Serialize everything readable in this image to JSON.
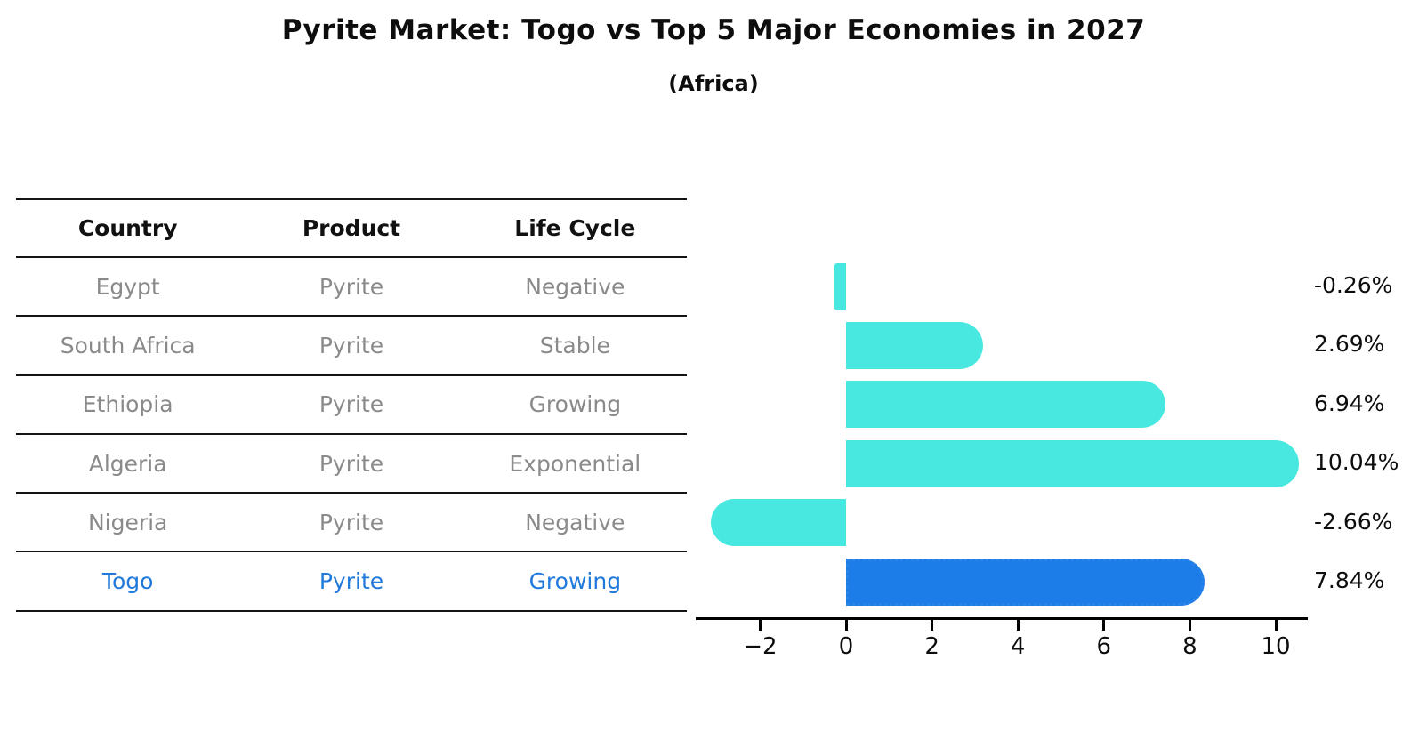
{
  "title": "Pyrite Market: Togo vs Top 5 Major Economies in 2027",
  "subtitle": "(Africa)",
  "table": {
    "headers": [
      "Country",
      "Product",
      "Life Cycle"
    ],
    "rows": [
      {
        "country": "Egypt",
        "product": "Pyrite",
        "life_cycle": "Negative",
        "highlight": false
      },
      {
        "country": "South Africa",
        "product": "Pyrite",
        "life_cycle": "Stable",
        "highlight": false
      },
      {
        "country": "Ethiopia",
        "product": "Pyrite",
        "life_cycle": "Growing",
        "highlight": false
      },
      {
        "country": "Algeria",
        "product": "Pyrite",
        "life_cycle": "Exponential",
        "highlight": false
      },
      {
        "country": "Nigeria",
        "product": "Pyrite",
        "life_cycle": "Negative",
        "highlight": false
      },
      {
        "country": "Togo",
        "product": "Pyrite",
        "life_cycle": "Growing",
        "highlight": true
      }
    ]
  },
  "chart_data": {
    "type": "bar",
    "orientation": "horizontal",
    "title": "Pyrite Market: Togo vs Top 5 Major Economies in 2027",
    "subtitle": "(Africa)",
    "categories": [
      "Egypt",
      "South Africa",
      "Ethiopia",
      "Algeria",
      "Nigeria",
      "Togo"
    ],
    "values": [
      -0.26,
      2.69,
      6.94,
      10.04,
      -2.66,
      7.84
    ],
    "value_labels": [
      "-0.26%",
      "2.69%",
      "6.94%",
      "10.04%",
      "-2.66%",
      "7.84%"
    ],
    "highlight_index": 5,
    "x_ticks": [
      -2,
      0,
      2,
      4,
      6,
      8,
      10
    ],
    "x_tick_labels": [
      "−2",
      "0",
      "2",
      "4",
      "6",
      "8",
      "10"
    ],
    "xlim": [
      -3.5,
      10.75
    ],
    "grid": false,
    "legend": null
  },
  "colors": {
    "bar": "#48E8E0",
    "highlight_bar": "#1C7CE8",
    "highlight_border": "#2B85E8",
    "highlight_text": "#2079DB",
    "row_text": "#8a8a8a",
    "header_text": "#111111",
    "axis": "#000000"
  }
}
